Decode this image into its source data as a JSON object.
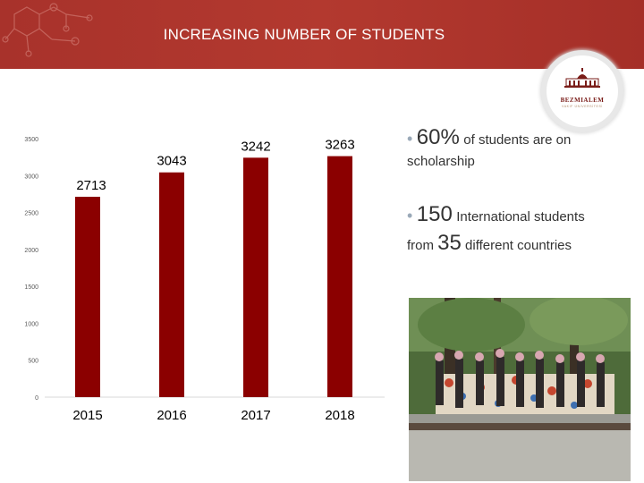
{
  "slide": {
    "title": "INCREASING NUMBER OF STUDENTS",
    "logo_text": "BEZMIALEM",
    "logo_subtext": "VAKIF ÜNİVERSİTESİ"
  },
  "bullets": {
    "b1_value": "60%",
    "b1_text": "of students are on",
    "b1_line2": "scholarship",
    "b2_value": "150",
    "b2_text": "International students",
    "b2_from": "from",
    "b2_value2": "35",
    "b2_text2": "different countries"
  },
  "colors": {
    "header": "#b3392f",
    "bar": "#8b0000"
  },
  "chart_data": {
    "type": "bar",
    "categories": [
      "2015",
      "2016",
      "2017",
      "2018"
    ],
    "values": [
      2713,
      3043,
      3242,
      3263
    ],
    "ylim": [
      0,
      3500
    ],
    "yticks": [
      0,
      500,
      1000,
      1500,
      2000,
      2500,
      3000,
      3500
    ],
    "title": "",
    "xlabel": "",
    "ylabel": "",
    "grid": false,
    "legend": "none"
  }
}
